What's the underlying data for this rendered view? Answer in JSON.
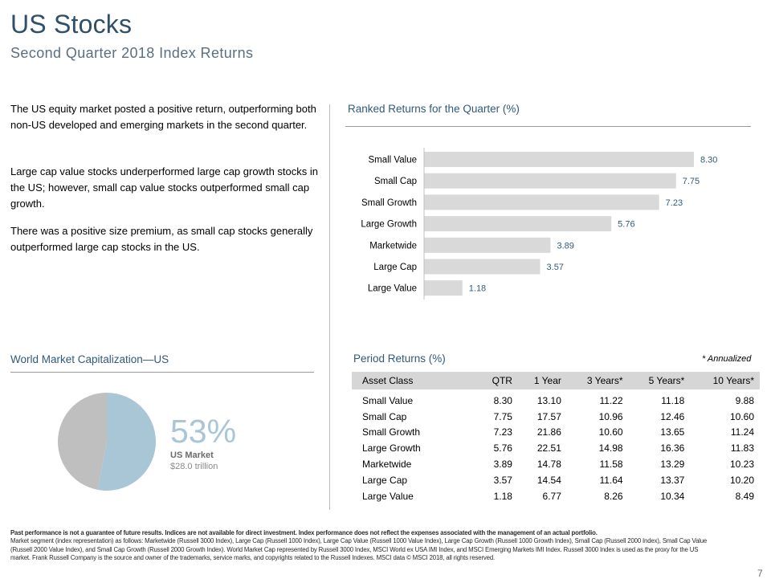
{
  "header": {
    "title": "US Stocks",
    "subtitle": "Second Quarter 2018 Index Returns"
  },
  "intro": {
    "p1": "The US equity market posted a positive return, outperforming both non-US developed and emerging markets in the second quarter.",
    "p2": "Large cap value stocks underperformed large cap growth stocks in the US; however, small cap value stocks outperformed small cap growth.",
    "p3": "There was a positive size premium, as small cap stocks generally outperformed large cap stocks in the US."
  },
  "ranked": {
    "title": "Ranked Returns for the Quarter (%)"
  },
  "world_cap": {
    "title": "World Market Capitalization—US",
    "percent_text": "53%",
    "label": "US Market",
    "sublabel": "$28.0 trillion"
  },
  "period": {
    "title": "Period Returns (%)",
    "annotation": "* Annualized",
    "columns": [
      "Asset Class",
      "QTR",
      "1 Year",
      "3 Years*",
      "5 Years*",
      "10 Years*"
    ],
    "rows": [
      [
        "Small Value",
        "8.30",
        "13.10",
        "11.22",
        "11.18",
        "9.88"
      ],
      [
        "Small Cap",
        "7.75",
        "17.57",
        "10.96",
        "12.46",
        "10.60"
      ],
      [
        "Small Growth",
        "7.23",
        "21.86",
        "10.60",
        "13.65",
        "11.24"
      ],
      [
        "Large Growth",
        "5.76",
        "22.51",
        "14.98",
        "16.36",
        "11.83"
      ],
      [
        "Marketwide",
        "3.89",
        "14.78",
        "11.58",
        "13.29",
        "10.23"
      ],
      [
        "Large Cap",
        "3.57",
        "14.54",
        "11.64",
        "13.37",
        "10.20"
      ],
      [
        "Large Value",
        "1.18",
        "6.77",
        "8.26",
        "10.34",
        "8.49"
      ]
    ]
  },
  "footnote": {
    "bold": "Past performance is not a guarantee of future results. Indices are not available for direct investment. Index performance does not reflect the expenses associated with the management of an actual portfolio.",
    "text": "Market segment (index representation) as follows: Marketwide (Russell 3000 Index), Large Cap (Russell 1000 Index), Large Cap Value (Russell 1000 Value Index), Large Cap Growth (Russell 1000 Growth Index), Small Cap (Russell 2000 Index), Small Cap Value (Russell 2000 Value Index), and Small Cap Growth (Russell 2000 Growth Index). World Market Cap represented by Russell 3000 Index, MSCI World ex USA IMI Index, and MSCI Emerging Markets IMI Index. Russell 3000 Index is used as the proxy for the US market. Frank Russell Company is the source and owner of the trademarks, service marks, and copyrights related to the Russell Indexes. MSCI data © MSCI 2018, all rights reserved."
  },
  "page_number": "7",
  "colors": {
    "title": "#2f4f6a",
    "bar": "#d9d9d9",
    "value": "#2f5a7a",
    "pie_us": "#a9c6d6",
    "pie_other": "#bfbfbf"
  },
  "chart_data": [
    {
      "type": "bar",
      "orientation": "horizontal",
      "title": "Ranked Returns for the Quarter (%)",
      "categories": [
        "Small Value",
        "Small Cap",
        "Small Growth",
        "Large Growth",
        "Marketwide",
        "Large Cap",
        "Large Value"
      ],
      "values": [
        8.3,
        7.75,
        7.23,
        5.76,
        3.89,
        3.57,
        1.18
      ],
      "value_labels": [
        "8.30",
        "7.75",
        "7.23",
        "5.76",
        "3.89",
        "3.57",
        "1.18"
      ],
      "xlim": [
        0,
        8.3
      ],
      "grid": false,
      "legend": "none"
    },
    {
      "type": "pie",
      "title": "World Market Capitalization—US",
      "slices": [
        {
          "value": 53
        },
        {
          "value": 47
        }
      ],
      "legend": "none"
    }
  ]
}
